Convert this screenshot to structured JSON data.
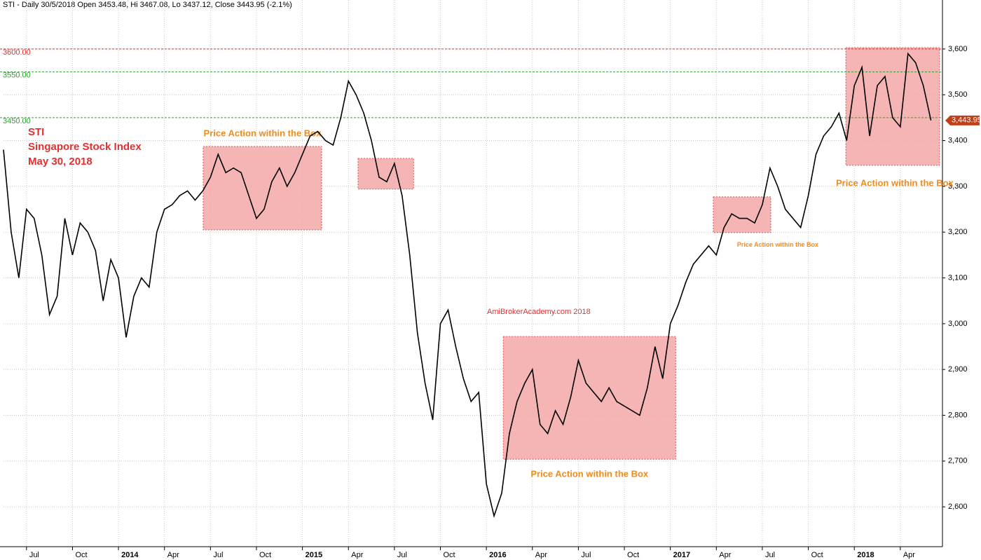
{
  "chart_data": {
    "type": "line",
    "header": "STI - Daily 30/5/2018 Open 3453.48, Hi 3467.08, Lo 3437.12, Close 3443.95 (-2.1%)",
    "title_lines": [
      "STI",
      "Singapore Stock Index",
      "May 30, 2018"
    ],
    "watermark": "AmiBrokerAcademy.com   2018",
    "series": [
      {
        "name": "STI",
        "color": "#000000",
        "values": [
          3380,
          3200,
          3100,
          3250,
          3230,
          3150,
          3020,
          3060,
          3230,
          3150,
          3220,
          3200,
          3160,
          3050,
          3140,
          3100,
          2970,
          3060,
          3100,
          3080,
          3200,
          3250,
          3260,
          3280,
          3290,
          3270,
          3290,
          3320,
          3370,
          3330,
          3340,
          3330,
          3280,
          3230,
          3250,
          3310,
          3340,
          3300,
          3330,
          3370,
          3410,
          3420,
          3400,
          3390,
          3450,
          3530,
          3500,
          3460,
          3400,
          3320,
          3310,
          3350,
          3280,
          3150,
          2980,
          2870,
          2790,
          3000,
          3030,
          2950,
          2880,
          2830,
          2850,
          2650,
          2580,
          2630,
          2760,
          2830,
          2870,
          2900,
          2780,
          2760,
          2810,
          2780,
          2840,
          2920,
          2870,
          2850,
          2830,
          2860,
          2830,
          2820,
          2810,
          2800,
          2860,
          2950,
          2880,
          3000,
          3040,
          3090,
          3130,
          3150,
          3170,
          3150,
          3210,
          3240,
          3230,
          3230,
          3220,
          3260,
          3340,
          3300,
          3250,
          3230,
          3210,
          3280,
          3370,
          3410,
          3430,
          3460,
          3400,
          3520,
          3560,
          3410,
          3520,
          3540,
          3450,
          3430,
          3590,
          3570,
          3520,
          3443.95
        ]
      }
    ],
    "last_price": {
      "value": 3443.95,
      "label": "3,443.95"
    },
    "xlim": [
      0,
      122.5
    ],
    "xticks": [
      {
        "value": 3,
        "label": "Jul"
      },
      {
        "value": 9,
        "label": "Oct"
      },
      {
        "value": 15,
        "label": "2014"
      },
      {
        "value": 21,
        "label": "Apr"
      },
      {
        "value": 27,
        "label": "Jul"
      },
      {
        "value": 33,
        "label": "Oct"
      },
      {
        "value": 39,
        "label": "2015"
      },
      {
        "value": 45,
        "label": "Apr"
      },
      {
        "value": 51,
        "label": "Jul"
      },
      {
        "value": 57,
        "label": "Oct"
      },
      {
        "value": 63,
        "label": "2016"
      },
      {
        "value": 69,
        "label": "Apr"
      },
      {
        "value": 75,
        "label": "Jul"
      },
      {
        "value": 81,
        "label": "Oct"
      },
      {
        "value": 87,
        "label": "2017"
      },
      {
        "value": 93,
        "label": "Apr"
      },
      {
        "value": 99,
        "label": "Jul"
      },
      {
        "value": 105,
        "label": "Oct"
      },
      {
        "value": 111,
        "label": "2018"
      },
      {
        "value": 117,
        "label": "Apr"
      }
    ],
    "ylim": [
      2513,
      3707
    ],
    "yticks": [
      {
        "value": 2600,
        "label": "2,600"
      },
      {
        "value": 2700,
        "label": "2,700"
      },
      {
        "value": 2800,
        "label": "2,800"
      },
      {
        "value": 2900,
        "label": "2,900"
      },
      {
        "value": 3000,
        "label": "3,000"
      },
      {
        "value": 3100,
        "label": "3,100"
      },
      {
        "value": 3200,
        "label": "3,200"
      },
      {
        "value": 3300,
        "label": "3,300"
      },
      {
        "value": 3400,
        "label": "3,400"
      },
      {
        "value": 3500,
        "label": "3,500"
      },
      {
        "value": 3600,
        "label": "3,600"
      }
    ],
    "grid": true,
    "hlines": [
      {
        "value": 3600,
        "label": "3600.00",
        "color": "#e03030"
      },
      {
        "value": 3550,
        "label": "3550.00",
        "color": "#30a030"
      },
      {
        "value": 3450,
        "label": "3450.00",
        "color": "#30a030"
      }
    ],
    "boxes": [
      {
        "x": [
          26.05,
          41.5
        ],
        "y": [
          3205,
          3387
        ],
        "label": "Price Action within the Box"
      },
      {
        "x": [
          46.25,
          53.5
        ],
        "y": [
          3294,
          3361
        ]
      },
      {
        "x": [
          65.2,
          87.7
        ],
        "y": [
          2704,
          2972
        ],
        "label": "Price Action within the Box"
      },
      {
        "x": [
          92.6,
          100.1
        ],
        "y": [
          3199,
          3277
        ],
        "label": "Price Action within the Box"
      },
      {
        "x": [
          109.9,
          122.1
        ],
        "y": [
          3346,
          3603
        ],
        "label": "Price Action within the Box"
      }
    ]
  }
}
